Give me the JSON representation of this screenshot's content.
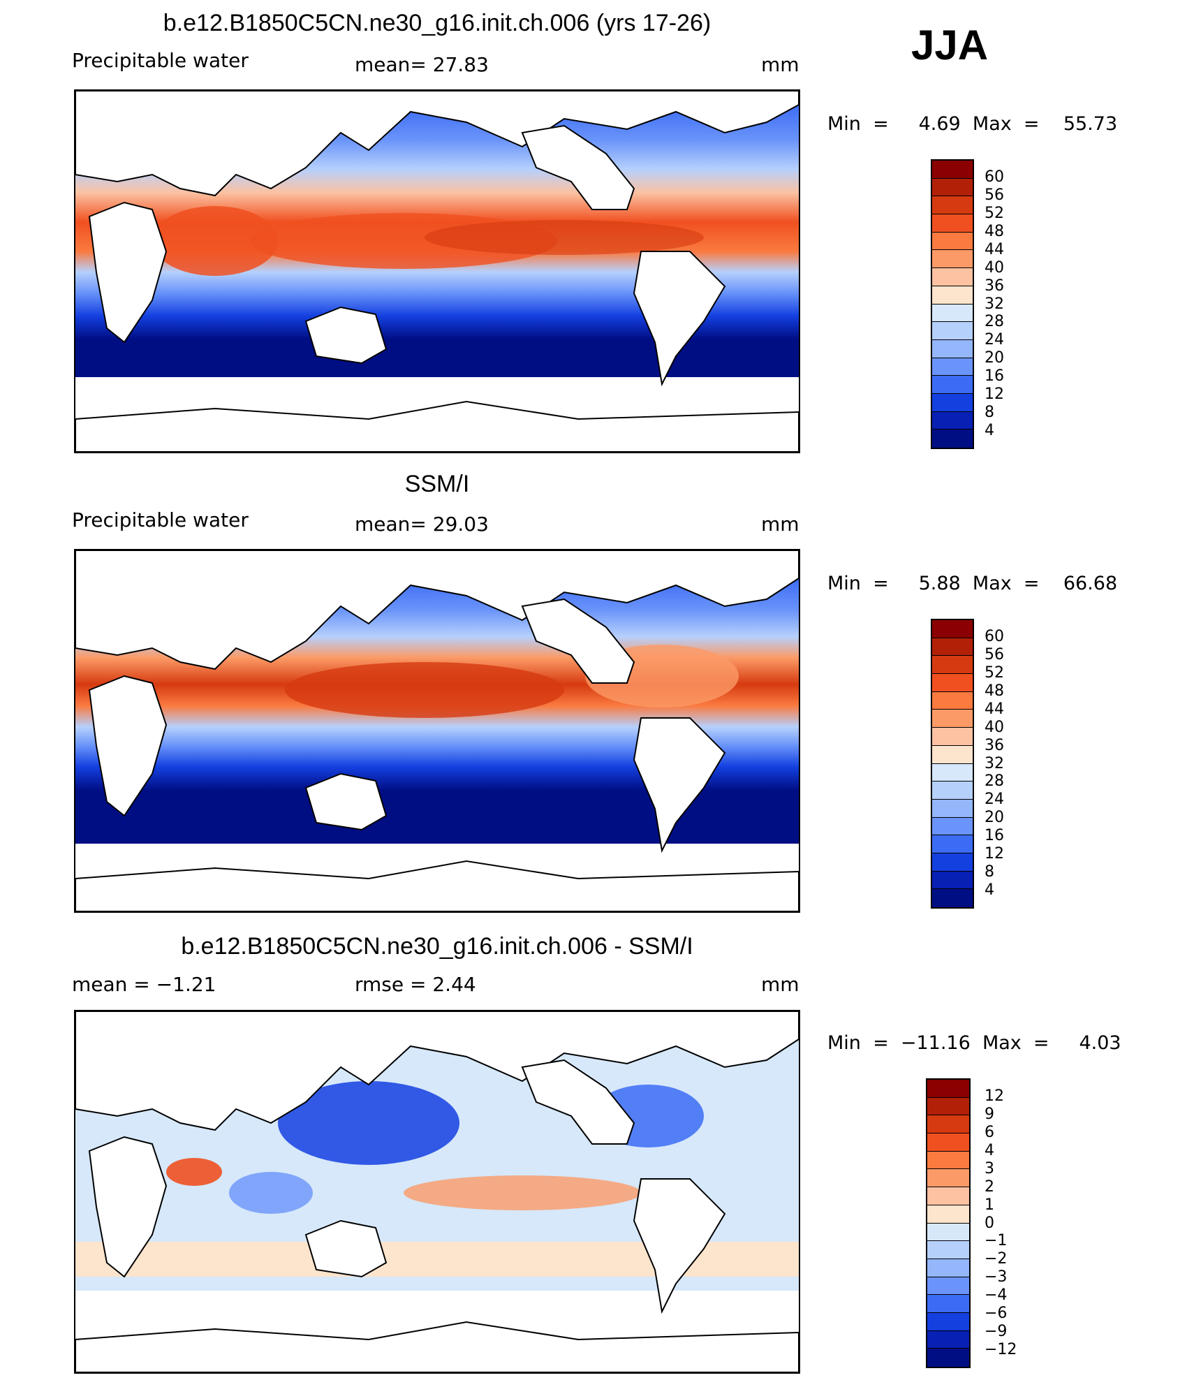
{
  "season": "JJA",
  "panels": [
    {
      "title": "b.e12.B1850C5CN.ne30_g16.init.ch.006 (yrs 17-26)",
      "left_label": "Precipitable  water",
      "mean_label": "mean=   27.83",
      "units": "mm",
      "minmax": "Min  =     4.69  Max  =    55.73"
    },
    {
      "title": "SSM/I",
      "left_label": "Precipitable  water",
      "mean_label": "mean=   29.03",
      "units": "mm",
      "minmax": "Min  =     5.88  Max  =    66.68"
    },
    {
      "title": "b.e12.B1850C5CN.ne30_g16.init.ch.006 - SSM/I",
      "left_label": "mean  =    −1.21",
      "mean_label": "rmse  =     2.44",
      "units": "mm",
      "minmax": "Min  =  −11.16  Max  =     4.03"
    }
  ],
  "colorbars": {
    "abs_levels": [
      "60",
      "56",
      "52",
      "48",
      "44",
      "40",
      "36",
      "32",
      "28",
      "24",
      "20",
      "16",
      "12",
      "8",
      "4"
    ],
    "diff_levels": [
      "12",
      "9",
      "6",
      "4",
      "3",
      "2",
      "1",
      "0",
      "−1",
      "−2",
      "−3",
      "−4",
      "−6",
      "−9",
      "−12"
    ],
    "colors": [
      "#8b0000",
      "#b22008",
      "#d63a10",
      "#f05020",
      "#fa7a40",
      "#fb9a66",
      "#fcc2a2",
      "#fde4cc",
      "#d6e8fa",
      "#b6d0fc",
      "#94b6fa",
      "#6a94fa",
      "#3c6cf4",
      "#1440e0",
      "#0820b4",
      "#000e84"
    ]
  }
}
